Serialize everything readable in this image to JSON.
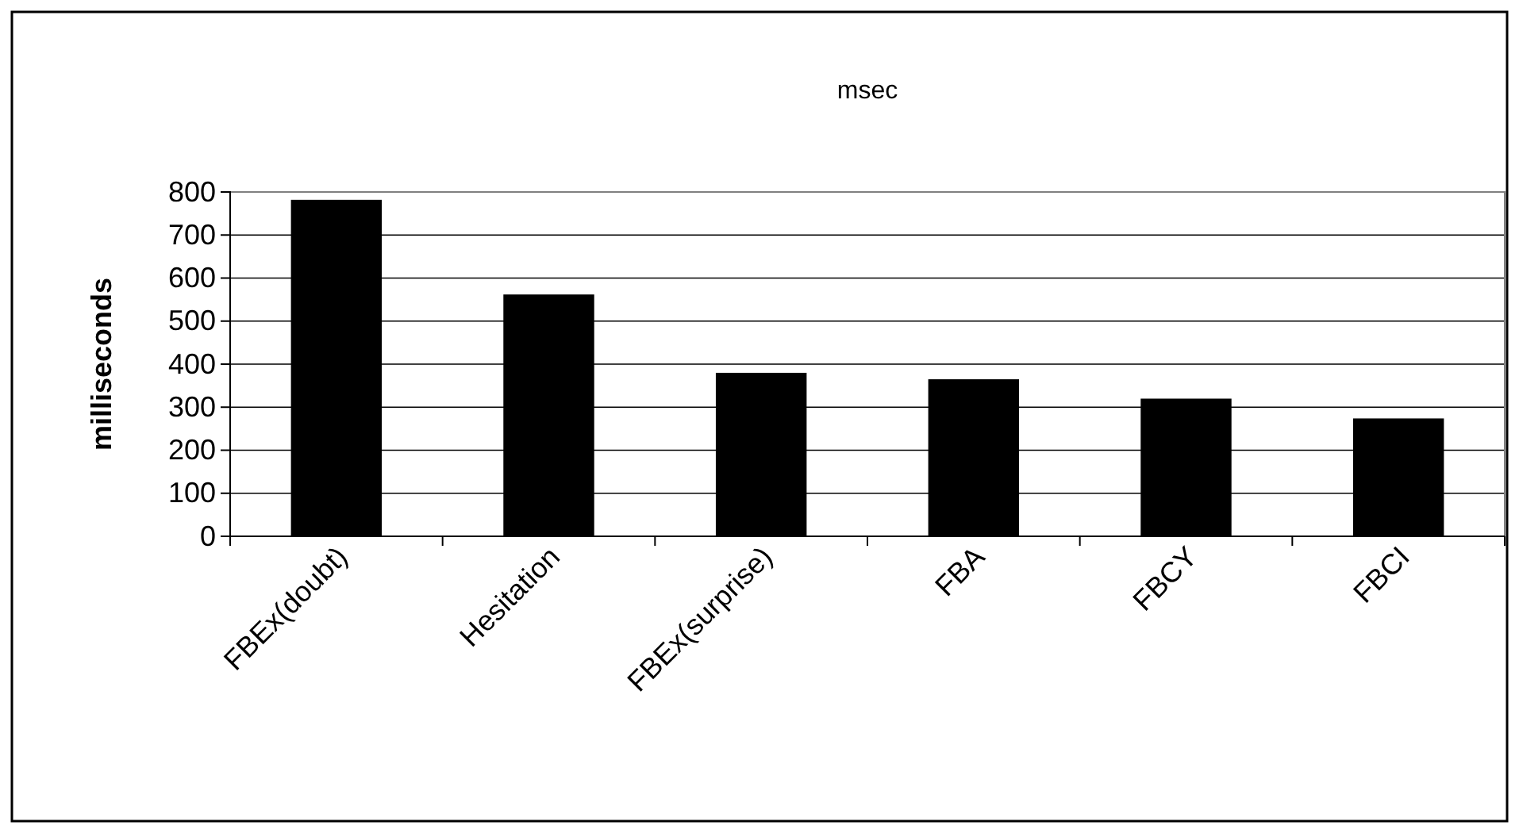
{
  "chart_data": {
    "type": "bar",
    "title": "msec",
    "ylabel": "milliseconds",
    "categories": [
      "FBEx(doubt)",
      "Hesitation",
      "FBEx(surprise)",
      "FBA",
      "FBCY",
      "FBCI"
    ],
    "values": [
      780,
      560,
      378,
      363,
      318,
      272
    ],
    "color": "#000000",
    "ylim": [
      0,
      800
    ],
    "yticks": [
      0,
      100,
      200,
      300,
      400,
      500,
      600,
      700,
      800
    ],
    "grid": "y"
  }
}
